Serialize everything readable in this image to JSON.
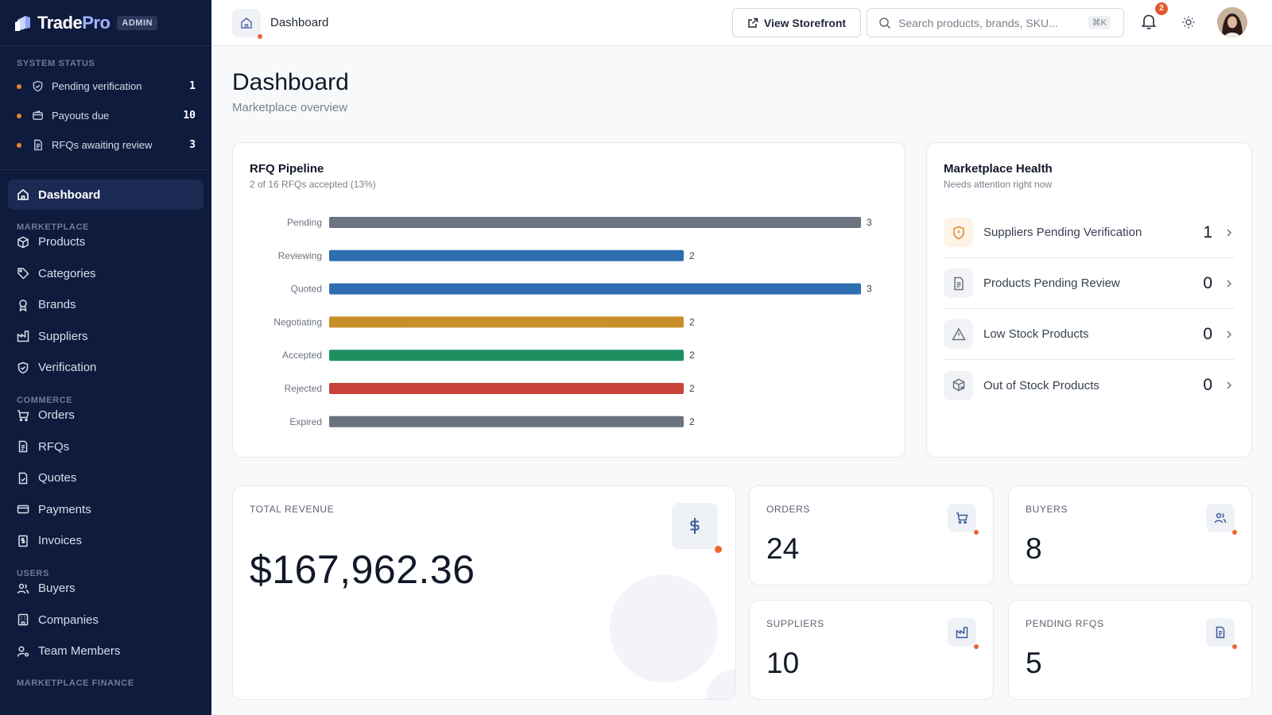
{
  "brand": {
    "name_a": "Trade",
    "name_b": "Pro",
    "badge": "ADMIN"
  },
  "sidebar": {
    "status_label": "SYSTEM STATUS",
    "status": [
      {
        "label": "Pending verification",
        "count": "1",
        "icon": "shield-check-icon"
      },
      {
        "label": "Payouts due",
        "count": "10",
        "icon": "wallet-icon"
      },
      {
        "label": "RFQs awaiting review",
        "count": "3",
        "icon": "document-icon"
      }
    ],
    "dashboard": "Dashboard",
    "groups": [
      {
        "label": "MARKETPLACE",
        "items": [
          "Products",
          "Categories",
          "Brands",
          "Suppliers",
          "Verification"
        ]
      },
      {
        "label": "COMMERCE",
        "items": [
          "Orders",
          "RFQs",
          "Quotes",
          "Payments",
          "Invoices"
        ]
      },
      {
        "label": "USERS",
        "items": [
          "Buyers",
          "Companies",
          "Team Members"
        ]
      },
      {
        "label": "MARKETPLACE FINANCE",
        "items": []
      }
    ]
  },
  "header": {
    "breadcrumb": "Dashboard",
    "storefront": "View Storefront",
    "search_placeholder": "Search products, brands, SKU...",
    "shortcut": "⌘K",
    "notifications": "2"
  },
  "page": {
    "title": "Dashboard",
    "subtitle": "Marketplace overview"
  },
  "rfq": {
    "title": "RFQ Pipeline",
    "subtitle": "2 of 16 RFQs accepted (13%)",
    "chart_data": {
      "type": "bar",
      "orientation": "horizontal",
      "categories": [
        "Pending",
        "Reviewing",
        "Quoted",
        "Negotiating",
        "Accepted",
        "Rejected",
        "Expired"
      ],
      "values": [
        3,
        2,
        3,
        2,
        2,
        2,
        2
      ],
      "colors": [
        "#6b7280",
        "#2f6eb0",
        "#2f6eb0",
        "#c98f2b",
        "#1f8f62",
        "#c8443a",
        "#6b7280"
      ],
      "xlim": [
        0,
        3
      ],
      "grid": false
    }
  },
  "health": {
    "title": "Marketplace Health",
    "subtitle": "Needs attention right now",
    "rows": [
      {
        "label": "Suppliers Pending Verification",
        "count": "1"
      },
      {
        "label": "Products Pending Review",
        "count": "0"
      },
      {
        "label": "Low Stock Products",
        "count": "0"
      },
      {
        "label": "Out of Stock Products",
        "count": "0"
      }
    ]
  },
  "stats": {
    "revenue": {
      "label": "TOTAL REVENUE",
      "value": "$167,962.36"
    },
    "orders": {
      "label": "ORDERS",
      "value": "24"
    },
    "buyers": {
      "label": "BUYERS",
      "value": "8"
    },
    "suppliers": {
      "label": "SUPPLIERS",
      "value": "10"
    },
    "pending": {
      "label": "PENDING RFQS",
      "value": "5"
    }
  },
  "colors": {
    "sidebar": "#0f1b3d",
    "accent": "#e8662f",
    "badge": "#e2582e"
  }
}
